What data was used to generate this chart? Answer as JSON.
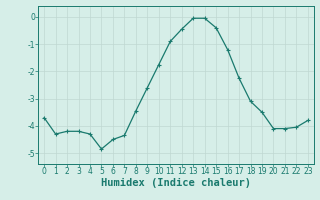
{
  "x": [
    0,
    1,
    2,
    3,
    4,
    5,
    6,
    7,
    8,
    9,
    10,
    11,
    12,
    13,
    14,
    15,
    16,
    17,
    18,
    19,
    20,
    21,
    22,
    23
  ],
  "y": [
    -3.7,
    -4.3,
    -4.2,
    -4.2,
    -4.3,
    -4.85,
    -4.5,
    -4.35,
    -3.45,
    -2.6,
    -1.75,
    -0.9,
    -0.45,
    -0.05,
    -0.05,
    -0.4,
    -1.2,
    -2.25,
    -3.1,
    -3.5,
    -4.1,
    -4.1,
    -4.05,
    -3.8
  ],
  "line_color": "#1a7a6e",
  "marker": "+",
  "marker_size": 3.5,
  "bg_color": "#d6eee8",
  "grid_color": "#c0d8d2",
  "xlabel": "Humidex (Indice chaleur)",
  "ylabel": "",
  "title": "",
  "xlim": [
    -0.5,
    23.5
  ],
  "ylim": [
    -5.4,
    0.4
  ],
  "yticks": [
    0,
    -1,
    -2,
    -3,
    -4,
    -5
  ],
  "xticks": [
    0,
    1,
    2,
    3,
    4,
    5,
    6,
    7,
    8,
    9,
    10,
    11,
    12,
    13,
    14,
    15,
    16,
    17,
    18,
    19,
    20,
    21,
    22,
    23
  ],
  "tick_label_fontsize": 5.5,
  "xlabel_fontsize": 7.5,
  "tick_color": "#1a7a6e",
  "spine_color": "#1a7a6e",
  "linewidth": 0.9,
  "marker_color": "#1a7a6e"
}
